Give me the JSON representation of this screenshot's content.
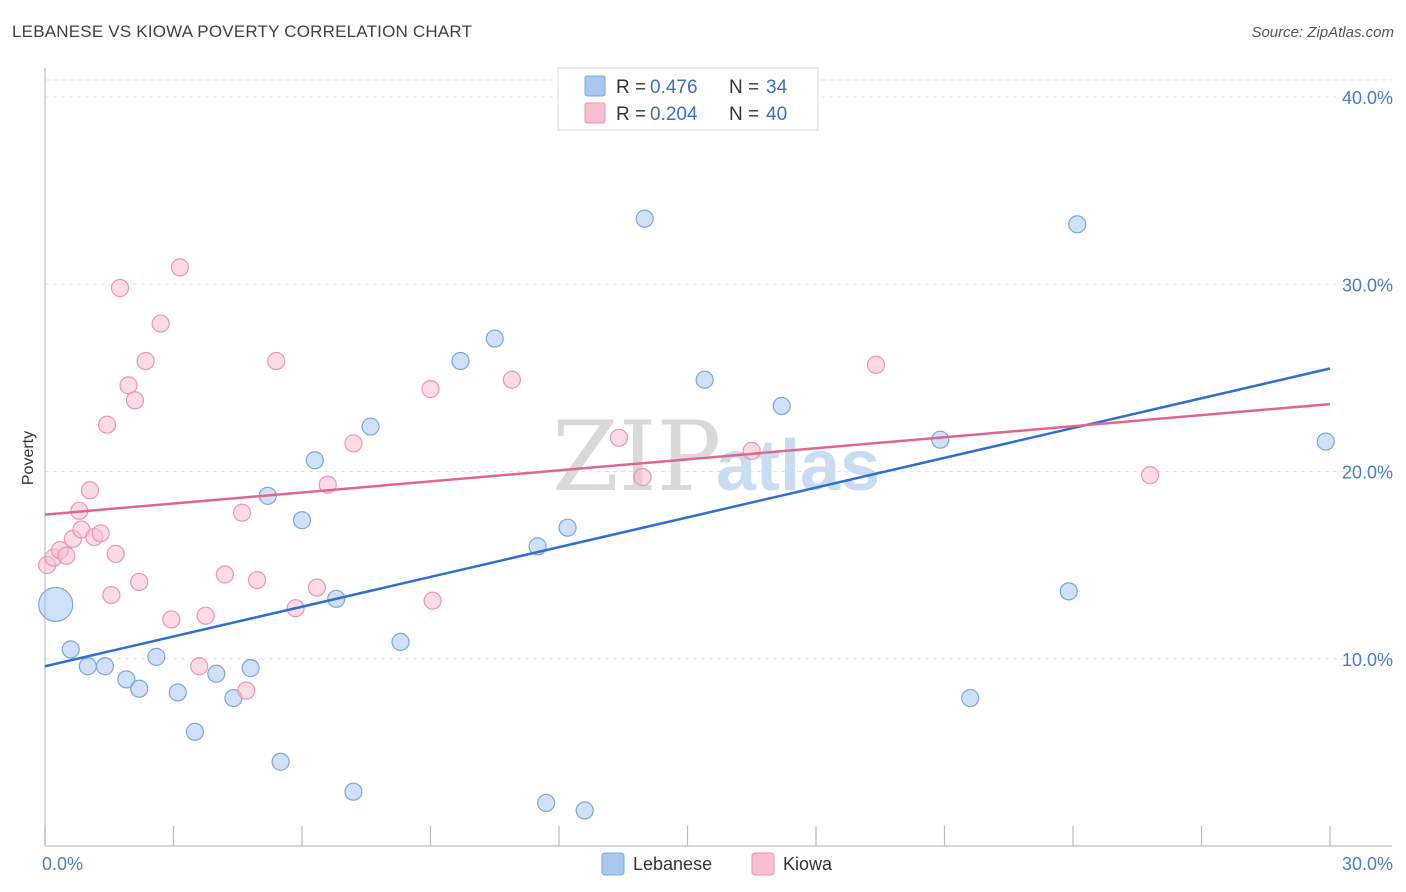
{
  "header": {
    "title": "LEBANESE VS KIOWA POVERTY CORRELATION CHART",
    "source": "Source: ZipAtlas.com"
  },
  "watermark": {
    "zip": "ZIP",
    "atlas": "atlas"
  },
  "legend": {
    "rows": [
      {
        "r_label": "R =",
        "r_value": "0.476",
        "n_label": "N =",
        "n_value": "34",
        "color": "#a9c8f0",
        "stroke": "#7aa6df"
      },
      {
        "r_label": "R =",
        "r_value": "0.204",
        "n_label": "N =",
        "n_value": "40",
        "color": "#f7bfd0",
        "stroke": "#ee94b2"
      }
    ]
  },
  "bottom_legend": [
    {
      "label": "Lebanese",
      "color": "#a9c8f0",
      "stroke": "#7aa6df"
    },
    {
      "label": "Kiowa",
      "color": "#f7bfd0",
      "stroke": "#ee94b2"
    }
  ],
  "chart_data": {
    "type": "scatter",
    "title": "LEBANESE VS KIOWA POVERTY CORRELATION CHART",
    "xlabel": "",
    "ylabel": "Poverty",
    "xlim": [
      0,
      30
    ],
    "ylim": [
      0,
      40
    ],
    "x_tick_labels": [
      {
        "value": 0,
        "label": "0.0%"
      },
      {
        "value": 30,
        "label": "30.0%"
      }
    ],
    "x_minor_ticks": [
      0,
      3,
      6,
      9,
      12,
      15,
      18,
      21,
      24,
      27,
      30
    ],
    "y_tick_labels": [
      {
        "value": 10,
        "label": "10.0%"
      },
      {
        "value": 20,
        "label": "20.0%"
      },
      {
        "value": 30,
        "label": "30.0%"
      },
      {
        "value": 40,
        "label": "40.0%"
      }
    ],
    "grid": true,
    "legend_position": "top-center",
    "series": [
      {
        "name": "Lebanese",
        "color": "#a9c8f0",
        "stroke": "#7aa6df",
        "line_color": "#2f6fcf",
        "trend": {
          "x0": 0,
          "y0": 9.6,
          "x1": 30,
          "y1": 25.5
        },
        "points": [
          {
            "x": 0.25,
            "y": 12.9,
            "big": true
          },
          {
            "x": 0.6,
            "y": 10.5
          },
          {
            "x": 1.0,
            "y": 9.6
          },
          {
            "x": 1.4,
            "y": 9.6
          },
          {
            "x": 1.9,
            "y": 8.9
          },
          {
            "x": 2.2,
            "y": 8.4
          },
          {
            "x": 2.6,
            "y": 10.1
          },
          {
            "x": 3.1,
            "y": 8.2
          },
          {
            "x": 3.5,
            "y": 6.1
          },
          {
            "x": 4.0,
            "y": 9.2
          },
          {
            "x": 4.4,
            "y": 7.9
          },
          {
            "x": 4.8,
            "y": 9.5
          },
          {
            "x": 5.2,
            "y": 18.7
          },
          {
            "x": 5.5,
            "y": 4.5
          },
          {
            "x": 6.0,
            "y": 17.4
          },
          {
            "x": 6.3,
            "y": 20.6
          },
          {
            "x": 6.8,
            "y": 13.2
          },
          {
            "x": 7.2,
            "y": 2.9
          },
          {
            "x": 7.6,
            "y": 22.4
          },
          {
            "x": 8.3,
            "y": 10.9
          },
          {
            "x": 9.7,
            "y": 25.9
          },
          {
            "x": 10.5,
            "y": 27.1
          },
          {
            "x": 11.5,
            "y": 16.0
          },
          {
            "x": 11.7,
            "y": 2.3
          },
          {
            "x": 12.2,
            "y": 17.0
          },
          {
            "x": 12.6,
            "y": 1.9
          },
          {
            "x": 14.0,
            "y": 33.5
          },
          {
            "x": 15.4,
            "y": 24.9
          },
          {
            "x": 17.2,
            "y": 23.5
          },
          {
            "x": 20.9,
            "y": 21.7
          },
          {
            "x": 21.6,
            "y": 7.9
          },
          {
            "x": 23.9,
            "y": 13.6
          },
          {
            "x": 24.1,
            "y": 33.2
          },
          {
            "x": 29.9,
            "y": 21.6
          }
        ]
      },
      {
        "name": "Kiowa",
        "color": "#f7bfd0",
        "stroke": "#ee94b2",
        "line_color": "#e0668f",
        "trend": {
          "x0": 0,
          "y0": 17.7,
          "x1": 30,
          "y1": 23.6
        },
        "points": [
          {
            "x": 0.05,
            "y": 15.0
          },
          {
            "x": 0.2,
            "y": 15.4
          },
          {
            "x": 0.35,
            "y": 15.8
          },
          {
            "x": 0.5,
            "y": 15.5
          },
          {
            "x": 0.65,
            "y": 16.4
          },
          {
            "x": 0.8,
            "y": 17.9
          },
          {
            "x": 0.85,
            "y": 16.9
          },
          {
            "x": 1.05,
            "y": 19.0
          },
          {
            "x": 1.15,
            "y": 16.5
          },
          {
            "x": 1.3,
            "y": 16.7
          },
          {
            "x": 1.45,
            "y": 22.5
          },
          {
            "x": 1.55,
            "y": 13.4
          },
          {
            "x": 1.65,
            "y": 15.6
          },
          {
            "x": 1.75,
            "y": 29.8
          },
          {
            "x": 1.95,
            "y": 24.6
          },
          {
            "x": 2.1,
            "y": 23.8
          },
          {
            "x": 2.2,
            "y": 14.1
          },
          {
            "x": 2.35,
            "y": 25.9
          },
          {
            "x": 2.7,
            "y": 27.9
          },
          {
            "x": 2.95,
            "y": 12.1
          },
          {
            "x": 3.15,
            "y": 30.9
          },
          {
            "x": 3.6,
            "y": 9.6
          },
          {
            "x": 3.75,
            "y": 12.3
          },
          {
            "x": 4.2,
            "y": 14.5
          },
          {
            "x": 4.6,
            "y": 17.8
          },
          {
            "x": 4.7,
            "y": 8.3
          },
          {
            "x": 4.95,
            "y": 14.2
          },
          {
            "x": 5.4,
            "y": 25.9
          },
          {
            "x": 5.85,
            "y": 12.7
          },
          {
            "x": 6.35,
            "y": 13.8
          },
          {
            "x": 6.6,
            "y": 19.3
          },
          {
            "x": 7.2,
            "y": 21.5
          },
          {
            "x": 9.0,
            "y": 24.4
          },
          {
            "x": 9.05,
            "y": 13.1
          },
          {
            "x": 10.9,
            "y": 24.9
          },
          {
            "x": 13.4,
            "y": 21.8
          },
          {
            "x": 13.95,
            "y": 19.7
          },
          {
            "x": 16.5,
            "y": 21.1
          },
          {
            "x": 19.4,
            "y": 25.7
          },
          {
            "x": 25.8,
            "y": 19.8
          }
        ]
      }
    ]
  }
}
